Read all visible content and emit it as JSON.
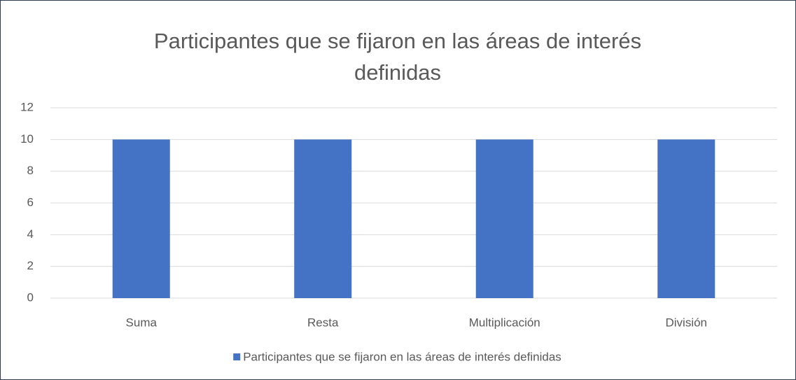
{
  "chart_data": {
    "type": "bar",
    "title": "Participantes que se fijaron en las áreas de interés definidas",
    "categories": [
      "Suma",
      "Resta",
      "Multiplicación",
      "División"
    ],
    "series": [
      {
        "name": "Participantes que se fijaron en las áreas de interés definidas",
        "color": "#4472c4",
        "values": [
          10,
          10,
          10,
          10
        ]
      }
    ],
    "ylim": [
      0,
      12
    ],
    "yticks": [
      0,
      2,
      4,
      6,
      8,
      10,
      12
    ],
    "grid": true,
    "legend": "bottom"
  }
}
